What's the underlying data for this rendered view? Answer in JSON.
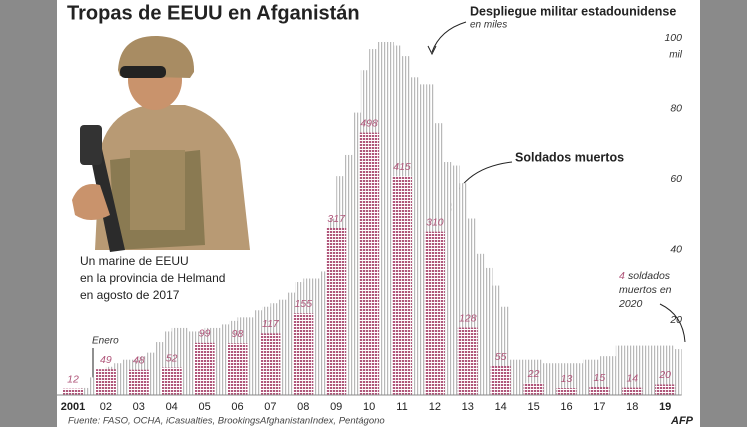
{
  "chart_data": {
    "type": "bar",
    "title": "Tropas de EEUU en Afganistán",
    "categories": [
      "2001",
      "02",
      "03",
      "04",
      "05",
      "06",
      "07",
      "08",
      "09",
      "10",
      "11",
      "12",
      "13",
      "14",
      "15",
      "16",
      "17",
      "18",
      "19"
    ],
    "series": [
      {
        "name": "Despliegue militar estadounidense",
        "subtitle": "en miles",
        "color": "#b8b8b8",
        "values": [
          [
            null,
            null,
            null,
            2
          ],
          [
            5,
            7,
            8,
            9
          ],
          [
            10,
            10,
            11,
            12
          ],
          [
            15,
            18,
            19,
            19
          ],
          [
            18,
            18,
            19,
            19
          ],
          [
            20,
            21,
            22,
            22
          ],
          [
            24,
            25,
            26,
            27
          ],
          [
            29,
            32,
            33,
            33
          ],
          [
            35,
            50,
            62,
            68
          ],
          [
            80,
            92,
            98,
            100
          ],
          [
            100,
            99,
            96,
            90
          ],
          [
            88,
            88,
            77,
            66
          ],
          [
            65,
            60,
            50,
            40
          ],
          [
            36,
            31,
            25,
            10
          ],
          [
            10,
            10,
            10,
            9
          ],
          [
            9,
            9,
            9,
            9
          ],
          [
            10,
            10,
            11,
            11
          ],
          [
            14,
            14,
            14,
            14
          ],
          [
            14,
            14,
            14,
            13
          ]
        ]
      },
      {
        "name": "Soldados muertos",
        "color": "#b0567a",
        "axis": "y2",
        "values": [
          12,
          49,
          48,
          52,
          99,
          98,
          117,
          155,
          317,
          498,
          415,
          310,
          128,
          55,
          22,
          13,
          15,
          14,
          20
        ]
      }
    ],
    "ylim": [
      0,
      100
    ],
    "yticks": [
      20,
      40,
      60,
      80,
      100
    ],
    "y_unit": "mil",
    "y2lim": [
      0,
      670
    ],
    "annotation_enero": "Enero",
    "note_2020": {
      "value": 4,
      "lines": [
        "soldados",
        "muertos en",
        "2020"
      ]
    },
    "photo_caption": [
      "Un marine de EEUU",
      "en la provincia de Helmand",
      "en agosto de 2017"
    ],
    "source": "Fuente: FASO, OCHA, iCasualties, BrookingsAfghanistanIndex, Pentágono",
    "logo": "AFP"
  }
}
